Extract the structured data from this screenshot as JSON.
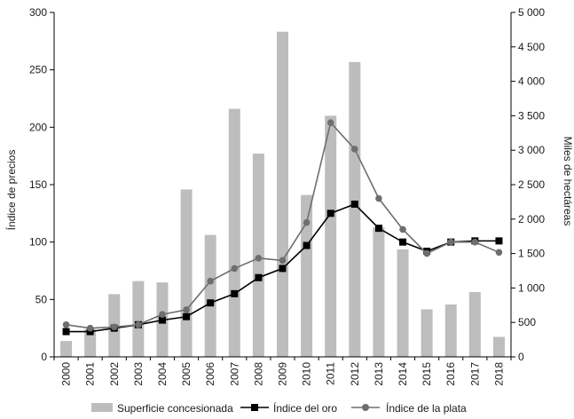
{
  "chart_data": {
    "type": "bar",
    "categories": [
      "2000",
      "2001",
      "2002",
      "2003",
      "2004",
      "2005",
      "2006",
      "2007",
      "2008",
      "2009",
      "2010",
      "2011",
      "2012",
      "2013",
      "2014",
      "2015",
      "2016",
      "2017",
      "2018"
    ],
    "ylabel_left": "Índice de precios",
    "ylabel_right": "Miles de hectáreas",
    "ylim_left": [
      0,
      300
    ],
    "yticks_left": [
      0,
      50,
      100,
      150,
      200,
      250,
      300
    ],
    "ylim_right": [
      0,
      5000
    ],
    "yticks_right": [
      0,
      500,
      1000,
      1500,
      2000,
      2500,
      3000,
      3500,
      4000,
      4500,
      5000
    ],
    "ytick_labels_right": [
      "0",
      "500",
      "1 000",
      "1 500",
      "2 000",
      "2 500",
      "3 000",
      "3 500",
      "4 000",
      "4 500",
      "5 000"
    ],
    "series": [
      {
        "name": "Superficie concesionada",
        "type": "bar",
        "axis": "right",
        "color": "#bdbdbd",
        "values": [
          230,
          400,
          910,
          1100,
          1080,
          2430,
          1770,
          3600,
          2950,
          4720,
          2350,
          3500,
          4280,
          1880,
          1560,
          690,
          760,
          940,
          290
        ]
      },
      {
        "name": "Índice del oro",
        "type": "line",
        "axis": "left",
        "marker": "square",
        "color": "#000000",
        "values": [
          22,
          22,
          25,
          28,
          32,
          35,
          47,
          55,
          69,
          77,
          97,
          125,
          133,
          112,
          100,
          92,
          100,
          101,
          101
        ]
      },
      {
        "name": "Índice de la plata",
        "type": "line",
        "axis": "left",
        "marker": "circle",
        "color": "#6e6e6e",
        "values": [
          28,
          25,
          26,
          28,
          37,
          41,
          66,
          77,
          86,
          84,
          117,
          204,
          181,
          138,
          111,
          90,
          100,
          100,
          91
        ]
      }
    ],
    "legend_position": "bottom",
    "grid": false
  }
}
